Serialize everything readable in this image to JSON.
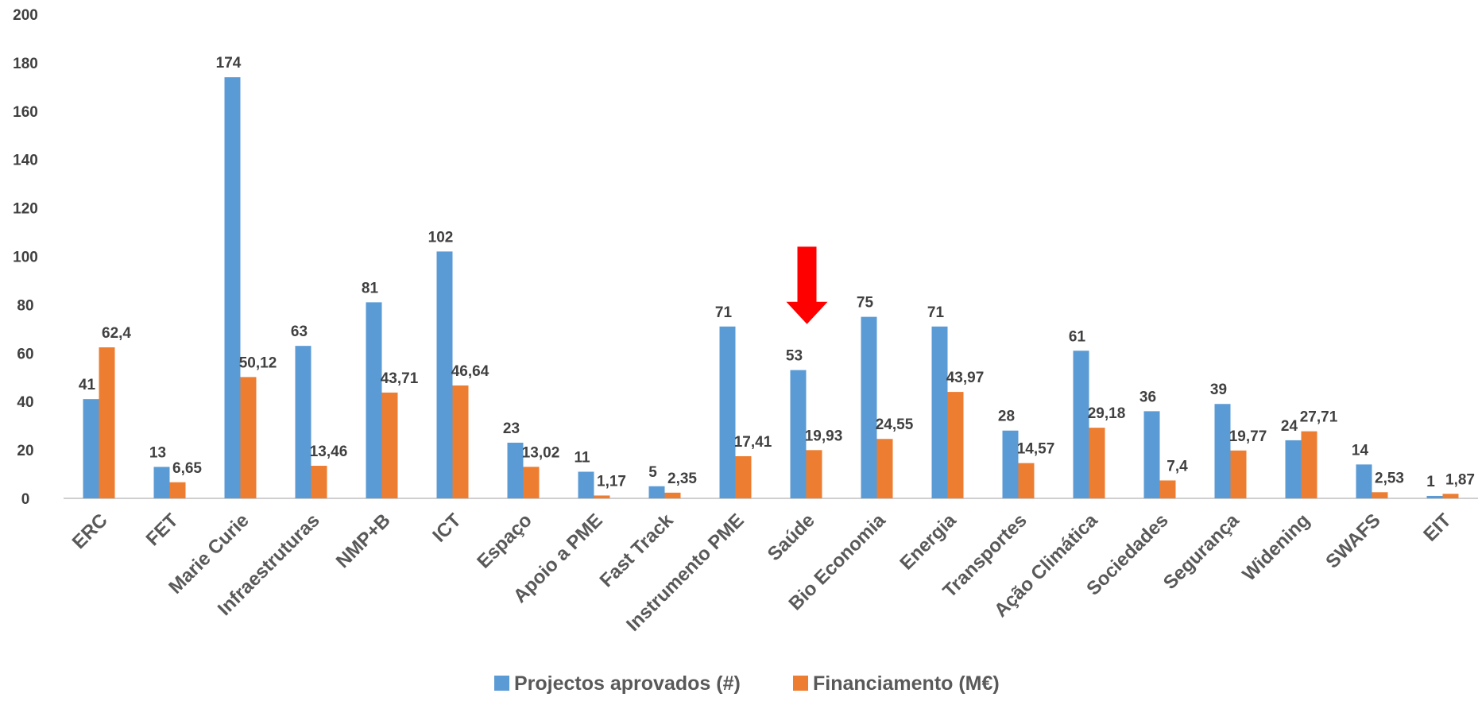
{
  "chart_data": {
    "type": "bar",
    "categories": [
      "ERC",
      "FET",
      "Marie Curie",
      "Infraestruturas",
      "NMP+B",
      "ICT",
      "Espaço",
      "Apoio a PME",
      "Fast Track",
      "Instrumento PME",
      "Saúde",
      "Bio Economia",
      "Energia",
      "Transportes",
      "Ação Climática",
      "Sociedades",
      "Segurança",
      "Widening",
      "SWAFS",
      "EIT"
    ],
    "series": [
      {
        "name": "Projectos aprovados (#)",
        "color": "#5B9BD5",
        "values": [
          41,
          13,
          174,
          63,
          81,
          102,
          23,
          11,
          5,
          71,
          53,
          75,
          71,
          28,
          61,
          36,
          39,
          24,
          14,
          1
        ],
        "labels": [
          "41",
          "13",
          "174",
          "63",
          "81",
          "102",
          "23",
          "11",
          "5",
          "71",
          "53",
          "75",
          "71",
          "28",
          "61",
          "36",
          "39",
          "24",
          "14",
          "1"
        ]
      },
      {
        "name": "Financiamento (M€)",
        "color": "#ED7D31",
        "values": [
          62.4,
          6.65,
          50.12,
          13.46,
          43.71,
          46.64,
          13.02,
          1.17,
          2.35,
          17.41,
          19.93,
          24.55,
          43.97,
          14.57,
          29.18,
          7.4,
          19.77,
          27.71,
          2.53,
          1.87
        ],
        "labels": [
          "62,4",
          "6,65",
          "50,12",
          "13,46",
          "43,71",
          "46,64",
          "13,02",
          "1,17",
          "2,35",
          "17,41",
          "19,93",
          "24,55",
          "43,97",
          "14,57",
          "29,18",
          "7,4",
          "19,77",
          "27,71",
          "2,53",
          "1,87"
        ]
      }
    ],
    "title": "",
    "xlabel": "",
    "ylabel": "",
    "ylim": [
      0,
      200
    ],
    "yticks": [
      0,
      20,
      40,
      60,
      80,
      100,
      120,
      140,
      160,
      180,
      200
    ],
    "grid": false,
    "legend_position": "bottom",
    "annotation": {
      "type": "arrow",
      "color": "#FF0000",
      "points_to_category": "Saúde",
      "tip_value": 72,
      "tail_value": 104
    }
  }
}
